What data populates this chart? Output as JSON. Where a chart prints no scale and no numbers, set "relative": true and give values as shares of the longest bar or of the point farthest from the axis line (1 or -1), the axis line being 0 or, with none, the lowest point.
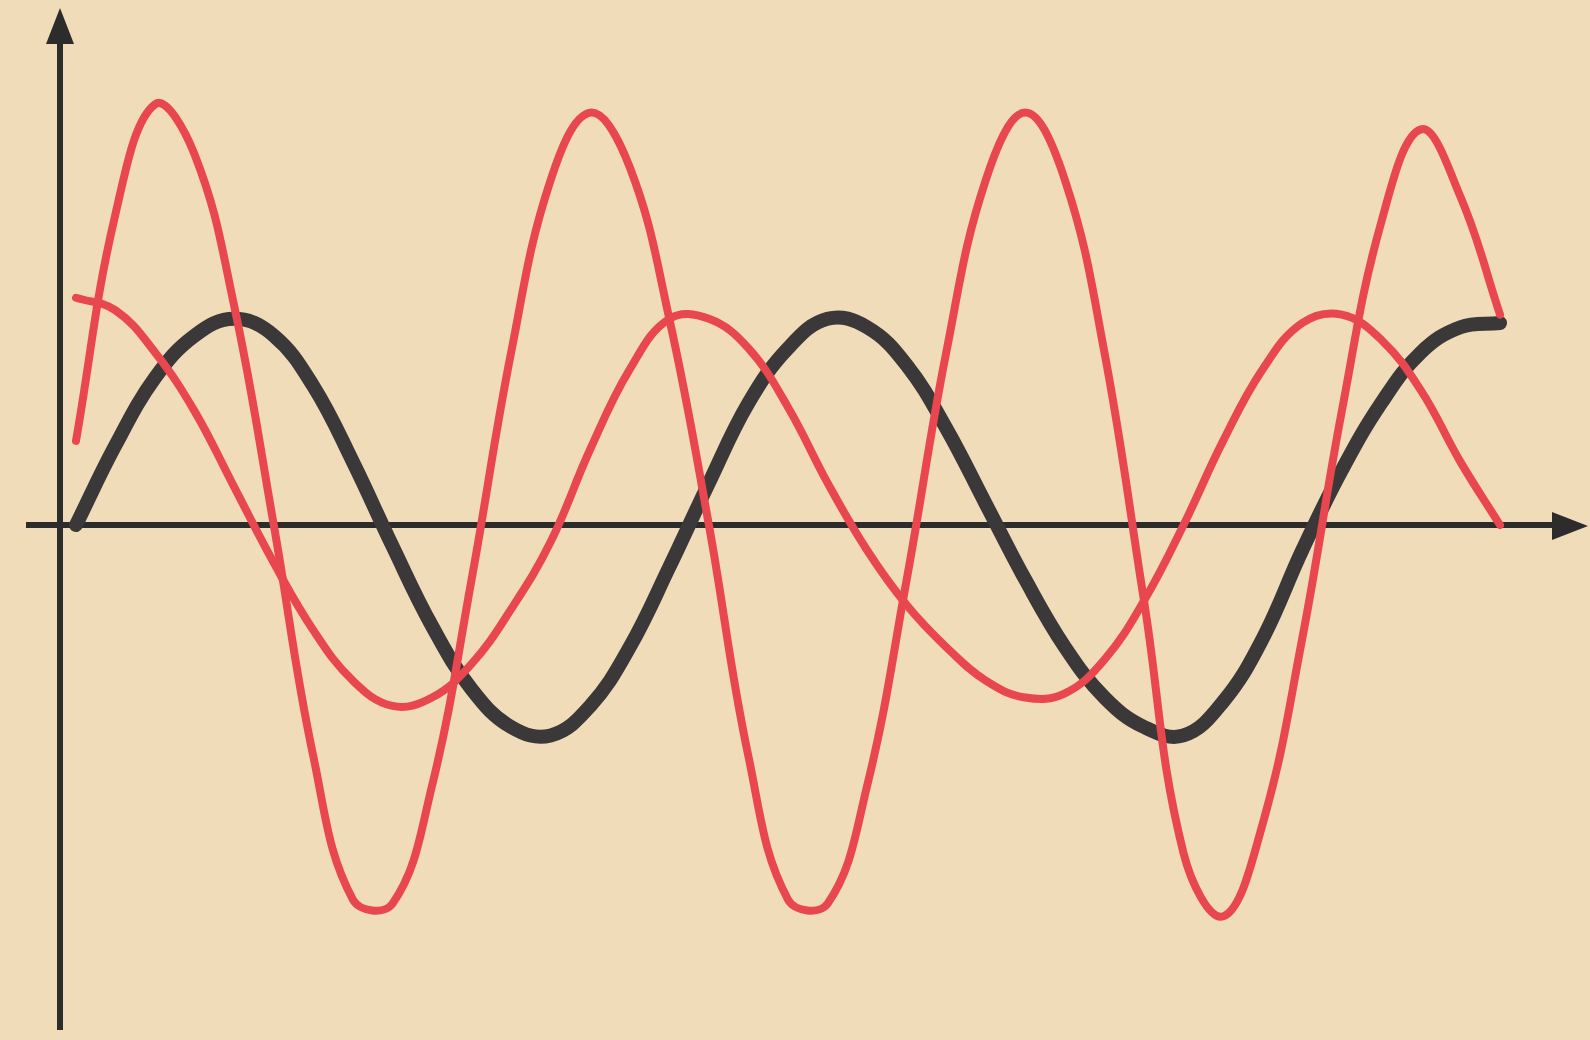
{
  "chart_data": {
    "type": "line",
    "relative": true,
    "legend": false,
    "marker": "none",
    "line_style": "solid",
    "categories": [
      null,
      null,
      null,
      null,
      null,
      null,
      null,
      null,
      null,
      null,
      null,
      null,
      null,
      null,
      null,
      null,
      null,
      null,
      null,
      null,
      null,
      null,
      null,
      null,
      null,
      null,
      null,
      null,
      null,
      null,
      null,
      null,
      null,
      null,
      null,
      null,
      null
    ],
    "series": [
      {
        "color": "#e8474f",
        "values": [
          0.54,
          0.51,
          0.41,
          0.27,
          0.09,
          -0.09,
          -0.25,
          -0.37,
          -0.43,
          -0.41,
          -0.33,
          -0.2,
          -0.04,
          0.18,
          0.37,
          0.49,
          0.49,
          0.42,
          0.28,
          0.1,
          -0.06,
          -0.19,
          -0.29,
          -0.37,
          -0.41,
          -0.4,
          -0.32,
          -0.18,
          0,
          0.2,
          0.37,
          0.48,
          0.5,
          0.44,
          0.32,
          0.15,
          0
        ]
      },
      {
        "color": "#e8474f",
        "values": [
          0.2,
          0.74,
          1.0,
          0.88,
          0.52,
          0,
          -0.55,
          -0.89,
          -0.9,
          -0.62,
          -0.13,
          0.41,
          0.82,
          0.98,
          0.85,
          0.49,
          0,
          -0.55,
          -0.89,
          -0.9,
          -0.62,
          -0.13,
          0.41,
          0.82,
          0.98,
          0.82,
          0.41,
          -0.18,
          -0.78,
          -0.93,
          -0.71,
          -0.27,
          0.27,
          0.72,
          0.94,
          0.78,
          0.5
        ]
      },
      {
        "color": "#3a3838",
        "values": [
          0,
          0.19,
          0.35,
          0.45,
          0.49,
          0.45,
          0.33,
          0.15,
          -0.05,
          -0.24,
          -0.39,
          -0.48,
          -0.5,
          -0.43,
          -0.29,
          -0.1,
          0.1,
          0.29,
          0.42,
          0.49,
          0.47,
          0.38,
          0.23,
          0.05,
          -0.13,
          -0.29,
          -0.41,
          -0.48,
          -0.5,
          -0.42,
          -0.27,
          -0.06,
          0.13,
          0.29,
          0.41,
          0.47,
          0.48
        ]
      }
    ]
  }
}
